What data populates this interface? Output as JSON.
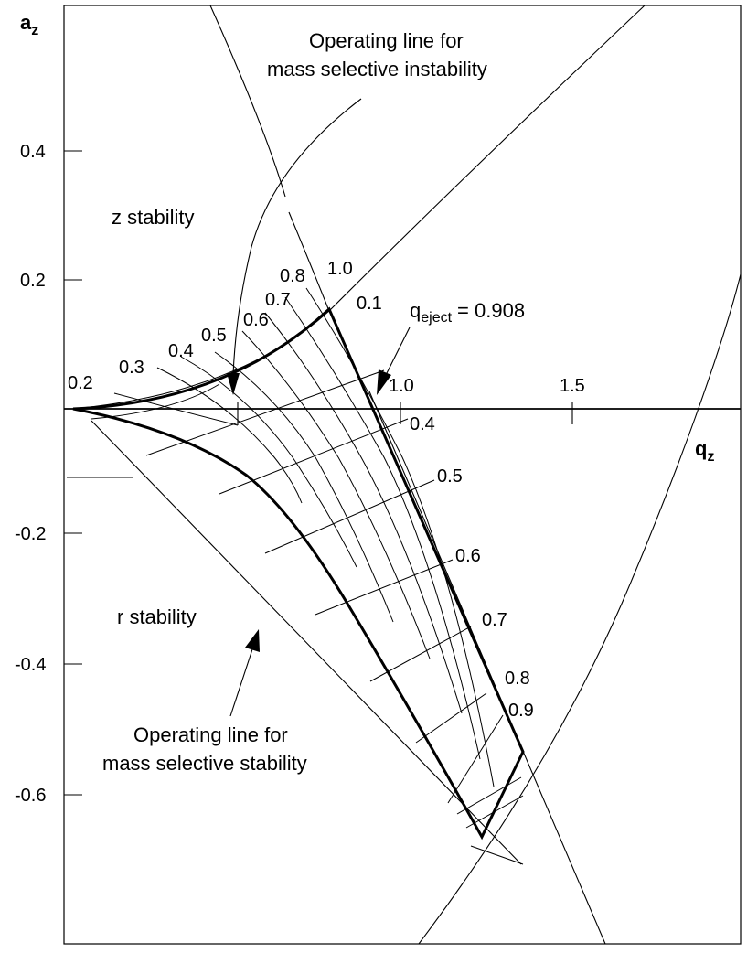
{
  "chart_data": {
    "type": "line",
    "title": "",
    "xlabel": "q",
    "xlabel_sub": "z",
    "ylabel": "a",
    "ylabel_sub": "z",
    "xlim": [
      0,
      1.77
    ],
    "ylim": [
      -0.83,
      0.63
    ],
    "x_ticks": [
      {
        "value": 1.0,
        "label": "1.0"
      },
      {
        "value": 1.5,
        "label": "1.5"
      }
    ],
    "y_ticks": [
      {
        "value": 0.4,
        "label": "0.4"
      },
      {
        "value": 0.2,
        "label": "0.2"
      },
      {
        "value": -0.2,
        "label": "-0.2"
      },
      {
        "value": -0.4,
        "label": "-0.4"
      },
      {
        "value": -0.6,
        "label": "-0.6"
      }
    ],
    "grid": false,
    "stability_boundaries": [
      {
        "x": [
          0.41,
          0.73,
          0.8
        ],
        "y": [
          0.63,
          0.205,
          0.14
        ]
      },
      {
        "x": [
          0.0,
          0.55,
          1.15,
          1.72
        ],
        "y": [
          0.0,
          0.1,
          0.33,
          0.63
        ]
      },
      {
        "x": [
          0.09,
          1.4,
          1.62
        ],
        "y": [
          -0.02,
          -0.66,
          -0.84
        ]
      },
      {
        "x": [
          0.92,
          1.25,
          1.35
        ],
        "y": [
          0.0,
          -0.53,
          -0.84
        ]
      },
      {
        "x": [
          1.08,
          1.63,
          1.97
        ],
        "y": [
          -0.83,
          -0.3,
          0.2
        ]
      }
    ],
    "iso_beta_z_curves": [
      {
        "label": "0.1",
        "x": [
          0.0,
          0.3,
          0.55,
          0.8,
          0.908
        ],
        "y": [
          0.0,
          0.035,
          0.07,
          0.11,
          0.15
        ]
      },
      {
        "label": "0.2",
        "x": [
          0.0,
          0.14,
          0.25,
          0.33
        ],
        "y": [
          0.0,
          0.018,
          0.03,
          0.035
        ]
      },
      {
        "label": "0.3",
        "x": [
          0.18,
          0.45,
          0.6,
          0.65
        ],
        "y": [
          0.07,
          0.0,
          -0.06,
          -0.11
        ]
      },
      {
        "label": "0.4",
        "x": [
          0.29,
          0.47,
          0.62,
          0.76,
          0.85
        ],
        "y": [
          0.1,
          0.03,
          -0.06,
          -0.2,
          -0.3
        ]
      },
      {
        "label": "0.5",
        "x": [
          0.38,
          0.55,
          0.7,
          0.82,
          0.92
        ],
        "y": [
          0.12,
          0.03,
          -0.08,
          -0.22,
          -0.37
        ]
      },
      {
        "label": "0.6",
        "x": [
          0.45,
          0.62,
          0.78,
          0.9,
          1.0
        ],
        "y": [
          0.13,
          0.03,
          -0.1,
          -0.27,
          -0.45
        ]
      },
      {
        "label": "0.7",
        "x": [
          0.51,
          0.7,
          0.85,
          0.97,
          1.08
        ],
        "y": [
          0.14,
          0.03,
          -0.12,
          -0.3,
          -0.55
        ]
      },
      {
        "label": "0.8",
        "x": [
          0.55,
          0.75,
          0.91,
          1.05,
          1.16
        ],
        "y": [
          0.15,
          0.04,
          -0.14,
          -0.34,
          -0.62
        ]
      }
    ],
    "iso_beta_r_labels": [
      "0.4",
      "0.5",
      "0.6",
      "0.7",
      "0.8",
      "0.9"
    ],
    "q_eject": "q",
    "q_eject_sub": "eject",
    "q_eject_value": "= 0.908",
    "region_labels": [
      "z stability",
      "r stability"
    ],
    "annotations": [
      {
        "lines": [
          "Operating line for",
          "mass selective instability"
        ]
      },
      {
        "lines": [
          "Operating line for",
          "mass selective stability"
        ]
      }
    ],
    "curve_labels": [
      "0.2",
      "0.3",
      "0.4",
      "0.5",
      "0.6",
      "0.7",
      "0.8",
      "1.0",
      "0.1"
    ]
  }
}
